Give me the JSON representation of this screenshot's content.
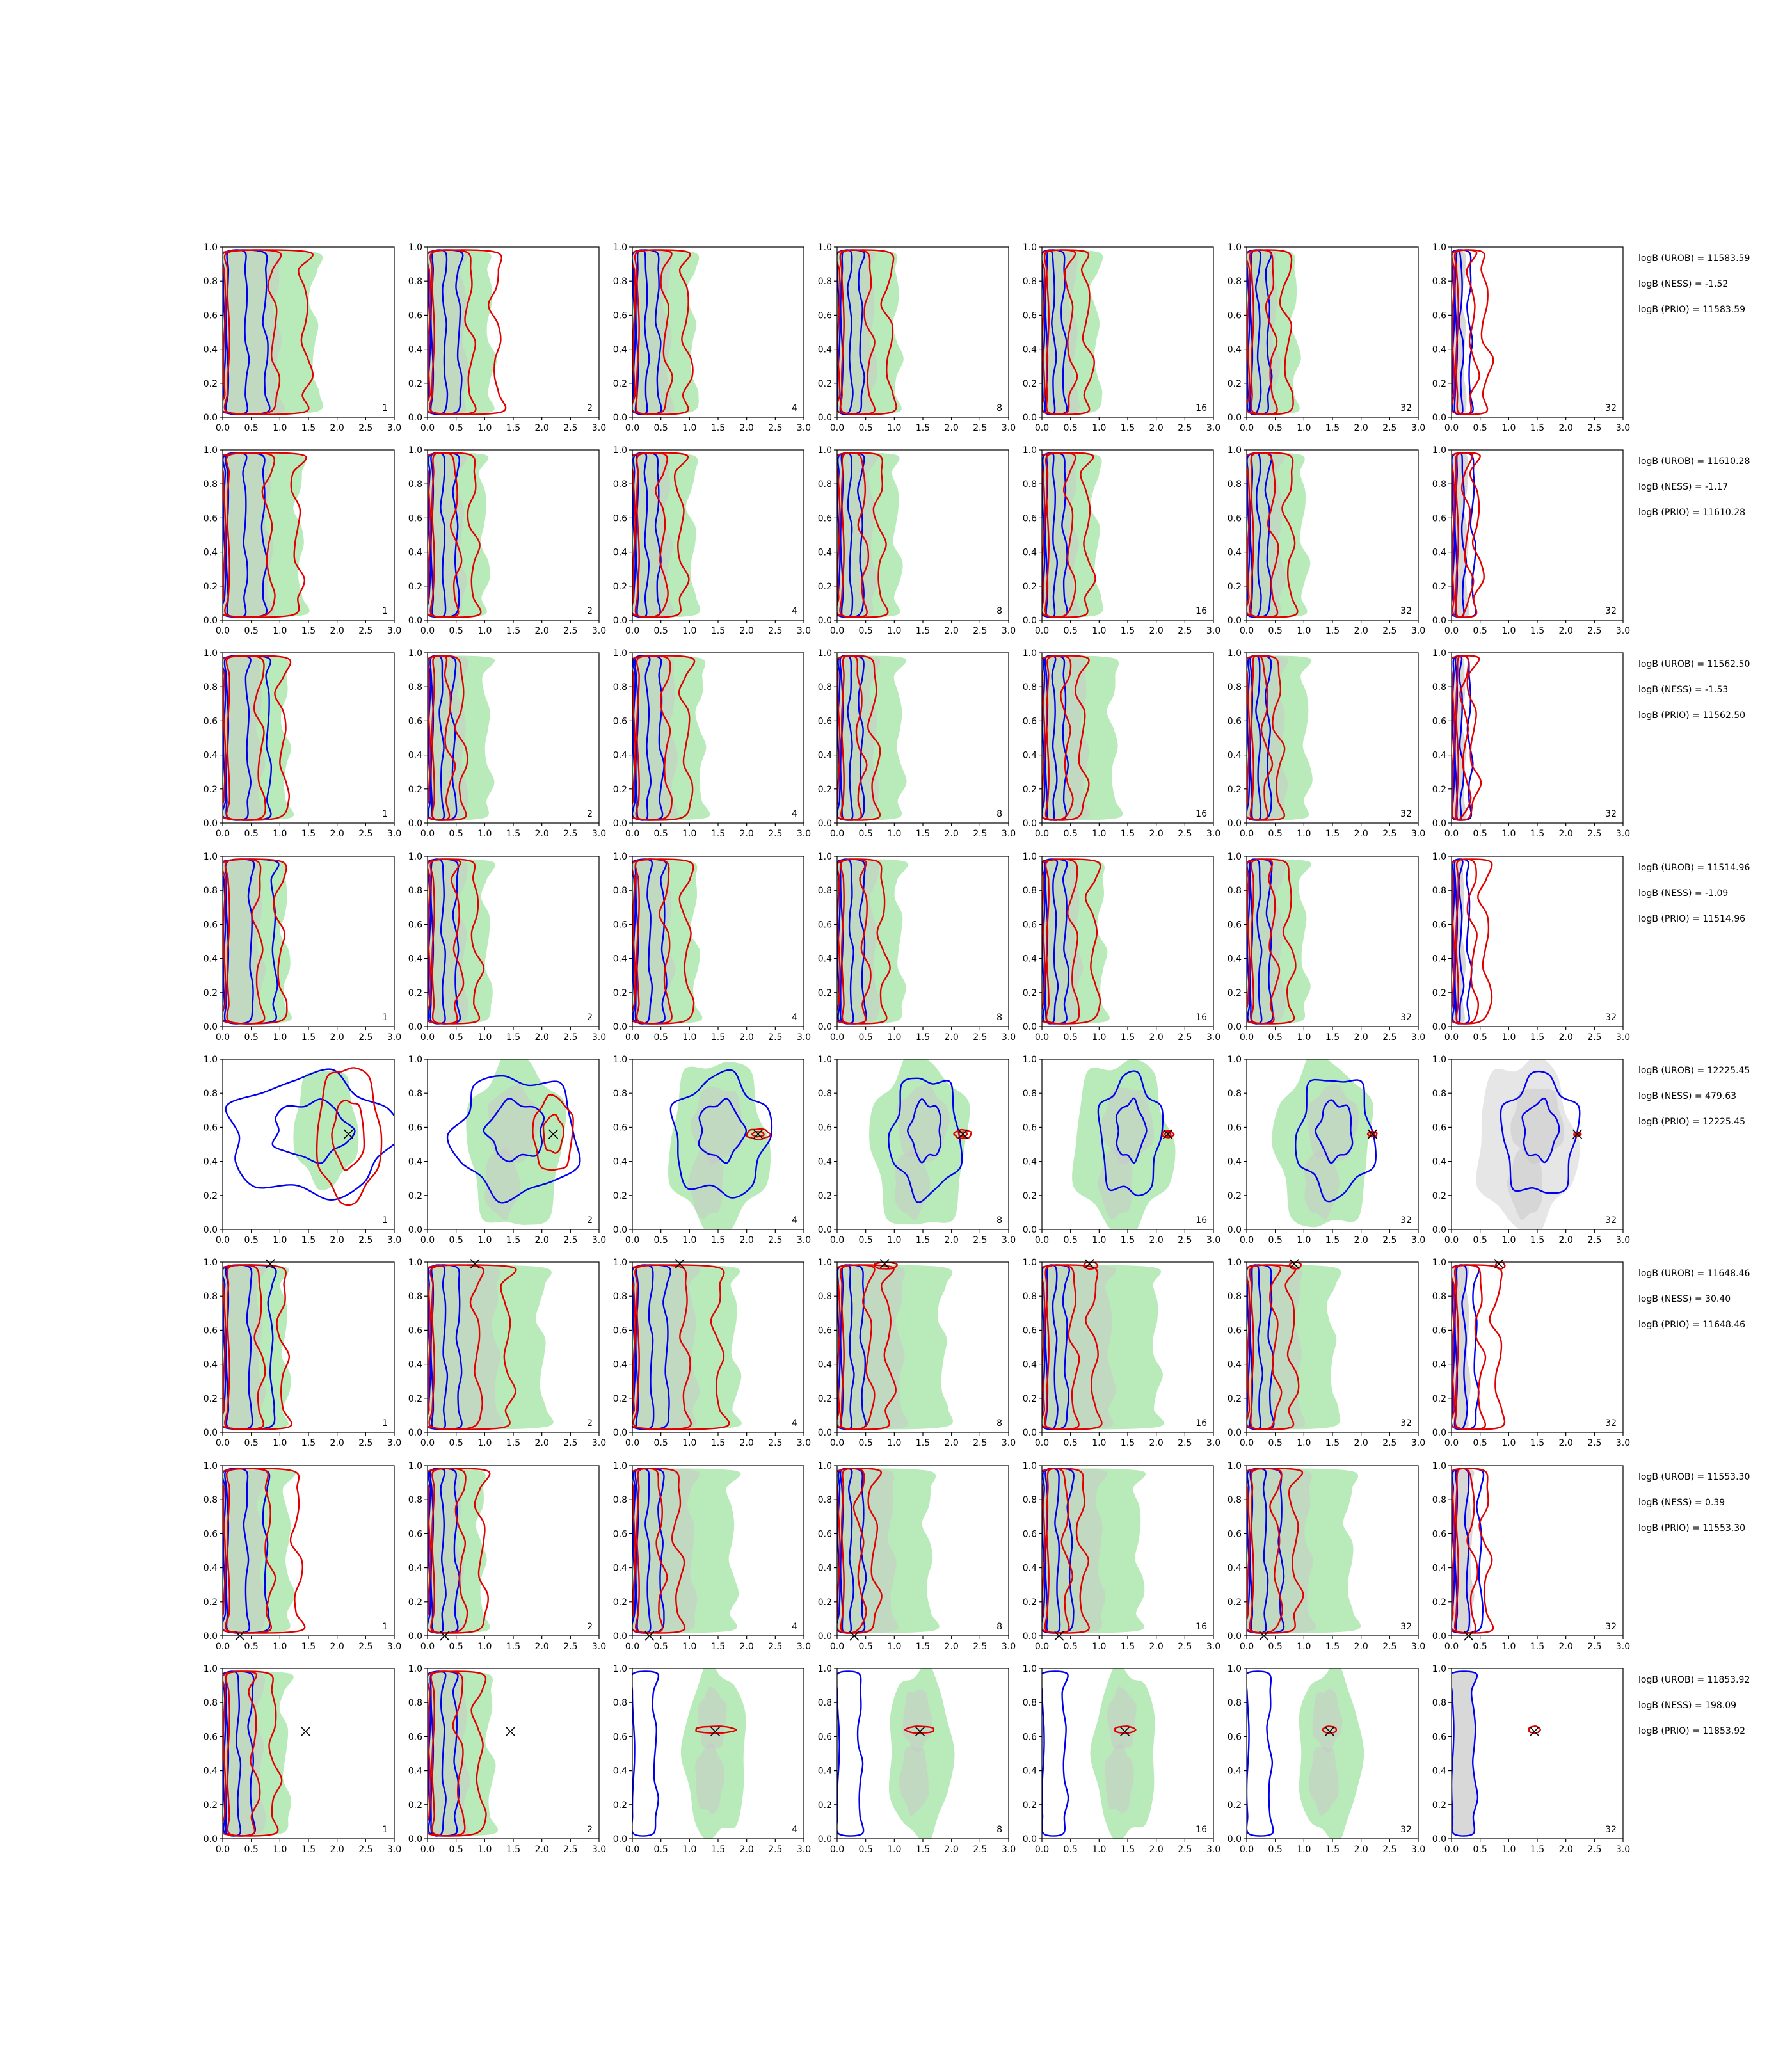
{
  "chart_data": {
    "type": "contour-grid",
    "xlim": [
      0,
      3
    ],
    "ylim": [
      0,
      1
    ],
    "x_ticks": [
      "0.0",
      "0.5",
      "1.0",
      "1.5",
      "2.0",
      "2.5",
      "3.0"
    ],
    "y_ticks": [
      "0.0",
      "0.2",
      "0.4",
      "0.6",
      "0.8",
      "1.0"
    ],
    "panel_labels": [
      "1",
      "2",
      "4",
      "8",
      "16",
      "32",
      "32"
    ],
    "colors": {
      "blue": "#0000ee",
      "red": "#e00000",
      "green_fill": "#b9eab9",
      "grey_fill": "#c8c8c8",
      "grey_light": "#e6e6e6"
    },
    "rows": [
      {
        "stats": [
          "logB (UROB) = 11583.59",
          "logB (NESS) = -1.52",
          "logB (PRIO) = 11583.59"
        ],
        "case": "narrow",
        "marker": null,
        "red_wide": [
          1.45,
          1.2,
          0.95,
          0.9,
          0.8,
          0.7,
          0.6
        ],
        "blue_wide": [
          0.75,
          0.55,
          0.45,
          0.42,
          0.38,
          0.38,
          0.32
        ],
        "green_wide": [
          1.6,
          1.1,
          1.05,
          1.05,
          0.95,
          0.85,
          0.0
        ]
      },
      {
        "stats": [
          "logB (UROB) = 11610.28",
          "logB (NESS) = -1.17",
          "logB (PRIO) = 11610.28"
        ],
        "case": "narrow",
        "marker": null,
        "red_wide": [
          1.3,
          0.8,
          0.85,
          0.75,
          0.8,
          0.75,
          0.45
        ],
        "blue_wide": [
          0.72,
          0.5,
          0.45,
          0.42,
          0.4,
          0.38,
          0.38
        ],
        "green_wide": [
          1.35,
          1.0,
          1.05,
          1.05,
          0.95,
          1.0,
          0.0
        ]
      },
      {
        "stats": [
          "logB (UROB) = 11562.50",
          "logB (NESS) = -1.53",
          "logB (PRIO) = 11562.50"
        ],
        "case": "narrow",
        "marker": null,
        "red_wide": [
          1.05,
          0.6,
          0.95,
          0.65,
          0.7,
          0.55,
          0.38
        ],
        "blue_wide": [
          0.8,
          0.45,
          0.5,
          0.42,
          0.4,
          0.38,
          0.32
        ],
        "green_wide": [
          1.1,
          1.05,
          1.2,
          1.1,
          1.25,
          1.05,
          0.0
        ]
      },
      {
        "stats": [
          "logB (UROB) = 11514.96",
          "logB (NESS) = -1.09",
          "logB (PRIO) = 11514.96"
        ],
        "case": "narrow",
        "marker": null,
        "red_wide": [
          1.0,
          0.85,
          0.95,
          0.8,
          0.9,
          0.75,
          0.6
        ],
        "blue_wide": [
          0.9,
          0.5,
          0.55,
          0.45,
          0.42,
          0.4,
          0.3
        ],
        "green_wide": [
          1.1,
          1.05,
          1.1,
          1.1,
          1.05,
          1.0,
          0.0
        ]
      },
      {
        "stats": [
          "logB (UROB) = 12225.45",
          "logB (NESS) = 479.63",
          "logB (PRIO) = 12225.45"
        ],
        "case": "wide",
        "marker": [
          2.2,
          0.56
        ]
      },
      {
        "stats": [
          "logB (UROB) = 11648.46",
          "logB (NESS) = 30.40",
          "logB (PRIO) = 11648.46"
        ],
        "case": "top",
        "marker": [
          0.83,
          0.99
        ],
        "red_wide": [
          1.05,
          1.4,
          1.5,
          0.9,
          0.9,
          0.8,
          0.8
        ],
        "blue_wide": [
          0.85,
          0.55,
          0.6,
          0.45,
          0.42,
          0.42,
          0.42
        ],
        "green_wide": [
          1.1,
          2.0,
          1.8,
          1.85,
          2.0,
          1.5,
          0.0
        ]
      },
      {
        "stats": [
          "logB (UROB) = 11553.30",
          "logB (NESS) = 0.39",
          "logB (PRIO) = 11553.30"
        ],
        "case": "narrow",
        "marker": [
          0.3,
          0.0
        ],
        "red_wide": [
          1.3,
          0.95,
          0.8,
          0.65,
          0.7,
          0.85,
          0.6
        ],
        "blue_wide": [
          0.75,
          0.5,
          0.5,
          0.45,
          0.5,
          0.6,
          0.5
        ],
        "green_wide": [
          1.15,
          0.95,
          1.75,
          1.6,
          1.7,
          1.8,
          0.0
        ]
      },
      {
        "stats": [
          "logB (UROB) = 11853.92",
          "logB (NESS) = 198.09",
          "logB (PRIO) = 11853.92"
        ],
        "case": "mixed",
        "marker": [
          1.45,
          0.63
        ]
      }
    ]
  }
}
